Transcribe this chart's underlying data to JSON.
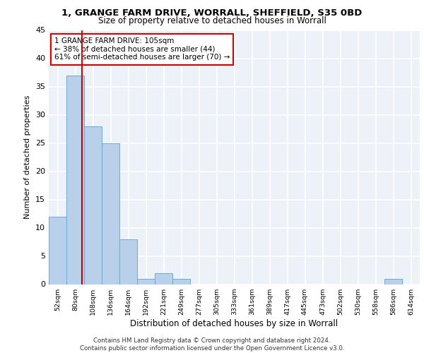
{
  "title_line1": "1, GRANGE FARM DRIVE, WORRALL, SHEFFIELD, S35 0BD",
  "title_line2": "Size of property relative to detached houses in Worrall",
  "xlabel": "Distribution of detached houses by size in Worrall",
  "ylabel": "Number of detached properties",
  "bin_labels": [
    "52sqm",
    "80sqm",
    "108sqm",
    "136sqm",
    "164sqm",
    "192sqm",
    "221sqm",
    "249sqm",
    "277sqm",
    "305sqm",
    "333sqm",
    "361sqm",
    "389sqm",
    "417sqm",
    "445sqm",
    "473sqm",
    "502sqm",
    "530sqm",
    "558sqm",
    "586sqm",
    "614sqm"
  ],
  "bar_values": [
    12,
    37,
    28,
    25,
    8,
    1,
    2,
    1,
    0,
    0,
    0,
    0,
    0,
    0,
    0,
    0,
    0,
    0,
    0,
    1,
    0
  ],
  "bar_color": "#b8d0ea",
  "bar_edgecolor": "#6aaad4",
  "vline_color": "#cc0000",
  "annotation_text": "1 GRANGE FARM DRIVE: 105sqm\n← 38% of detached houses are smaller (44)\n61% of semi-detached houses are larger (70) →",
  "annotation_box_edgecolor": "#cc0000",
  "annotation_box_facecolor": "#ffffff",
  "ylim": [
    0,
    45
  ],
  "yticks": [
    0,
    5,
    10,
    15,
    20,
    25,
    30,
    35,
    40,
    45
  ],
  "footer_text": "Contains HM Land Registry data © Crown copyright and database right 2024.\nContains public sector information licensed under the Open Government Licence v3.0.",
  "background_color": "#edf2f9",
  "grid_color": "#ffffff"
}
